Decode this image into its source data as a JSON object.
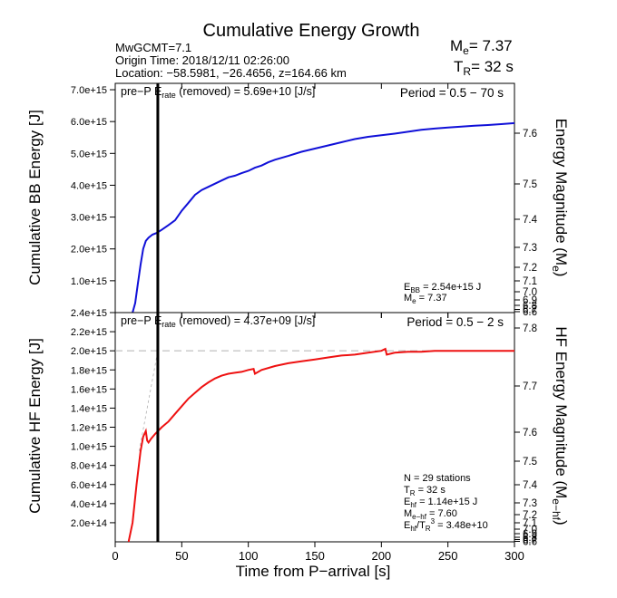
{
  "header": {
    "title": "Cumulative Energy Growth",
    "mw": "MwGCMT=7.1",
    "origin_time": "Origin Time: 2018/12/11 02:26:00",
    "location": "Location: −58.5981, −26.4656, z=164.66 km",
    "me_prefix": "M",
    "me_sub": "e",
    "me_value": "= 7.37",
    "tr_prefix": "T",
    "tr_sub": "R",
    "tr_value": "= 32 s"
  },
  "colors": {
    "bb_line": "#1010d8",
    "hf_line": "#ee1111",
    "marker": "#000000",
    "dashed": "#b0b0b0"
  },
  "top_panel": {
    "prep_prefix": "pre−P E",
    "prep_sub": "rate",
    "prep_suffix": " (removed) = 5.69e+10 [J/s]",
    "period": "Period = 0.5 − 70 s",
    "ylabel": "Cumulative BB Energy [J]",
    "right_label_pre": "Energy Magnitude (M",
    "right_label_sub": "e",
    "right_label_post": ")",
    "ebb_prefix": "E",
    "ebb_sub": "BB",
    "ebb_value": " = 2.54e+15 J",
    "me_prefix": "M",
    "me_sub": "e",
    "me_value": " = 7.37"
  },
  "bottom_panel": {
    "prep_prefix": "pre−P E",
    "prep_sub": "rate",
    "prep_suffix": " (removed) = 4.37e+09 [J/s]",
    "period": "Period = 0.5 − 2 s",
    "ylabel": "Cumulative HF Energy [J]",
    "right_label_pre": "HF Energy Magnitude (M",
    "right_label_sub": "e−hf",
    "right_label_post": ")",
    "n_stations": "N = 29 stations",
    "tr_prefix": "T",
    "tr_sub": "R",
    "tr_value": " = 32  s",
    "ehf_prefix": "E",
    "ehf_sub": "hf",
    "ehf_value": " = 1.14e+15 J",
    "mehf_prefix": "M",
    "mehf_sub": "e−hf",
    "mehf_value": " = 7.60",
    "ratio_e": "E",
    "ratio_sub1": "hf",
    "ratio_slash": "/T",
    "ratio_sub2": "R",
    "ratio_sup": "3",
    "ratio_value": " =  3.48e+10"
  },
  "xaxis": {
    "label": "Time from P−arrival [s]",
    "ticks": [
      "0",
      "50",
      "100",
      "150",
      "200",
      "250",
      "300"
    ]
  },
  "chart_data": [
    {
      "type": "line",
      "title": "",
      "xlabel": "",
      "ylabel": "Cumulative BB Energy [J]",
      "xlim": [
        0,
        300
      ],
      "ylim": [
        0,
        7200000000000000.0
      ],
      "y_ticks": [
        "1.0e+15",
        "2.0e+15",
        "3.0e+15",
        "4.0e+15",
        "5.0e+15",
        "6.0e+15",
        "7.0e+15"
      ],
      "y2_ticks": [
        "6.6",
        "6.7",
        "6.8",
        "6.9",
        "7.0",
        "7.1",
        "7.2",
        "7.3",
        "7.4",
        "7.5",
        "7.6"
      ],
      "tr_marker_x": 32,
      "series": [
        {
          "x": [
            13,
            15,
            17,
            19,
            21,
            23,
            25,
            28,
            31,
            35,
            40,
            45,
            50,
            55,
            60,
            65,
            70,
            75,
            80,
            85,
            90,
            95,
            100,
            105,
            110,
            115,
            120,
            130,
            140,
            150,
            160,
            170,
            180,
            190,
            200,
            210,
            220,
            230,
            240,
            250,
            260,
            270,
            280,
            290,
            300
          ],
          "y": [
            0.0,
            300000000000000.0,
            900000000000000.0,
            1500000000000000.0,
            2000000000000000.0,
            2250000000000000.0,
            2350000000000000.0,
            2450000000000000.0,
            2500000000000000.0,
            2600000000000000.0,
            2750000000000000.0,
            2900000000000000.0,
            3200000000000000.0,
            3450000000000000.0,
            3700000000000000.0,
            3850000000000000.0,
            3950000000000000.0,
            4050000000000000.0,
            4150000000000000.0,
            4250000000000000.0,
            4300000000000000.0,
            4380000000000000.0,
            4450000000000000.0,
            4550000000000000.0,
            4620000000000000.0,
            4720000000000000.0,
            4800000000000000.0,
            4920000000000000.0,
            5050000000000000.0,
            5150000000000000.0,
            5250000000000000.0,
            5350000000000000.0,
            5450000000000000.0,
            5520000000000000.0,
            5570000000000000.0,
            5620000000000000.0,
            5680000000000000.0,
            5740000000000000.0,
            5780000000000000.0,
            5810000000000000.0,
            5840000000000000.0,
            5870000000000000.0,
            5890000000000000.0,
            5920000000000000.0,
            5950000000000000.0
          ]
        }
      ]
    },
    {
      "type": "line",
      "title": "",
      "xlabel": "Time from P−arrival [s]",
      "ylabel": "Cumulative HF Energy [J]",
      "xlim": [
        0,
        300
      ],
      "ylim": [
        0,
        2400000000000000.0
      ],
      "y_ticks": [
        "2.0e+14",
        "4.0e+14",
        "6.0e+14",
        "8.0e+14",
        "1.0e+15",
        "1.2e+15",
        "1.4e+15",
        "1.6e+15",
        "1.8e+15",
        "2.0e+15",
        "2.2e+15",
        "2.4e+15"
      ],
      "y2_ticks": [
        "6.6",
        "6.7",
        "6.8",
        "6.9",
        "7.0",
        "7.1",
        "7.2",
        "7.3",
        "7.4",
        "7.5",
        "7.6",
        "7.7",
        "7.8"
      ],
      "dashed_level_y": 2000000000000000.0,
      "tr_marker_x": 32,
      "series": [
        {
          "x": [
            10,
            13,
            16,
            19,
            21,
            23,
            24,
            25,
            27,
            30,
            35,
            40,
            45,
            50,
            55,
            60,
            65,
            70,
            75,
            80,
            85,
            90,
            95,
            100,
            104,
            105,
            110,
            120,
            130,
            140,
            150,
            160,
            170,
            180,
            190,
            200,
            203,
            204,
            210,
            220,
            230,
            240,
            250,
            260,
            270,
            280,
            290,
            300
          ],
          "y": [
            0.0,
            200000000000000.0,
            600000000000000.0,
            950000000000000.0,
            1100000000000000.0,
            1160000000000000.0,
            1060000000000000.0,
            1040000000000000.0,
            1080000000000000.0,
            1130000000000000.0,
            1200000000000000.0,
            1260000000000000.0,
            1340000000000000.0,
            1420000000000000.0,
            1500000000000000.0,
            1560000000000000.0,
            1620000000000000.0,
            1670000000000000.0,
            1710000000000000.0,
            1740000000000000.0,
            1760000000000000.0,
            1770000000000000.0,
            1780000000000000.0,
            1800000000000000.0,
            1810000000000000.0,
            1760000000000000.0,
            1800000000000000.0,
            1840000000000000.0,
            1870000000000000.0,
            1890000000000000.0,
            1910000000000000.0,
            1930000000000000.0,
            1950000000000000.0,
            1960000000000000.0,
            1980000000000000.0,
            2000000000000000.0,
            2020000000000000.0,
            1960000000000000.0,
            1980000000000000.0,
            1990000000000000.0,
            1990000000000000.0,
            2000000000000000.0,
            2000000000000000.0,
            2000000000000000.0,
            2000000000000000.0,
            2000000000000000.0,
            2000000000000000.0,
            2000000000000000.0
          ]
        }
      ]
    }
  ]
}
